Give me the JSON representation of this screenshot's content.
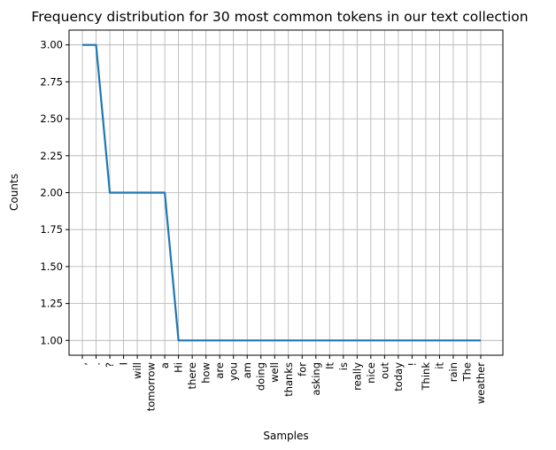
{
  "chart_data": {
    "type": "line",
    "title": "Frequency distribution for 30 most common tokens in our text collection",
    "xlabel": "Samples",
    "ylabel": "Counts",
    "categories": [
      ",",
      ".",
      "?",
      "I",
      "will",
      "tomorrow",
      "a",
      "Hi",
      "there",
      "how",
      "are",
      "you",
      "am",
      "doing",
      "well",
      "thanks",
      "for",
      "asking",
      "It",
      "is",
      "really",
      "nice",
      "out",
      "today",
      "!",
      "Think",
      "it",
      "rain",
      "The",
      "weather"
    ],
    "series": [
      {
        "values": [
          3,
          3,
          2,
          2,
          2,
          2,
          2,
          1,
          1,
          1,
          1,
          1,
          1,
          1,
          1,
          1,
          1,
          1,
          1,
          1,
          1,
          1,
          1,
          1,
          1,
          1,
          1,
          1,
          1,
          1
        ]
      }
    ],
    "yticks": [
      "1.00",
      "1.25",
      "1.50",
      "1.75",
      "2.00",
      "2.25",
      "2.50",
      "2.75",
      "3.00"
    ],
    "ylim": [
      0.9,
      3.1
    ],
    "grid": true,
    "line_color": "#1f77b4"
  }
}
